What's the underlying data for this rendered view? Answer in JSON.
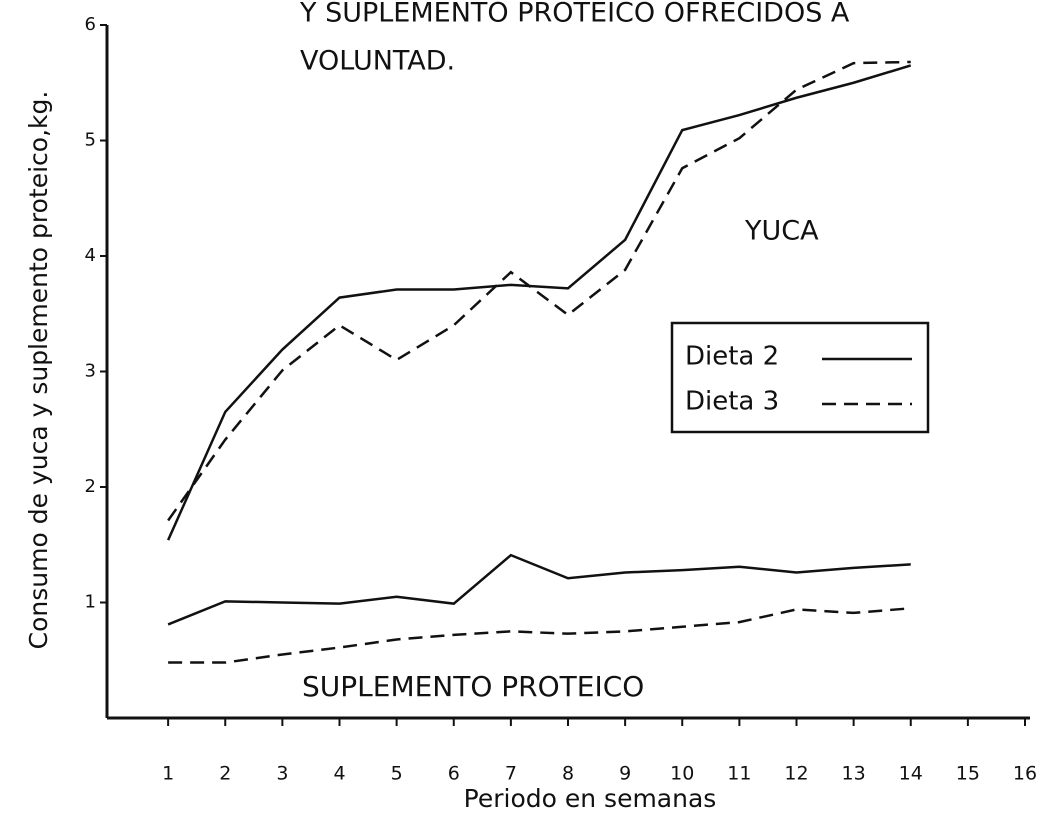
{
  "chart_data": {
    "type": "line",
    "title_lines": [
      "Y SUPLEMENTO PROTEICO OFRECIDOS  A",
      "VOLUNTAD."
    ],
    "y_label": "Consumo de yuca y suplemento proteico,kg.",
    "x_label": "Periodo en semanas",
    "annotations": [
      "YUCA",
      "SUPLEMENTO PROTEICO"
    ],
    "x": [
      1,
      2,
      3,
      4,
      5,
      6,
      7,
      8,
      9,
      10,
      11,
      12,
      13,
      14
    ],
    "series": [
      {
        "name": "Dieta 2",
        "color": "#111111",
        "dash": "solid",
        "yuca": [
          1.54,
          2.65,
          3.19,
          3.64,
          3.71,
          3.71,
          3.75,
          3.72,
          4.14,
          5.09,
          5.22,
          5.37,
          5.5,
          5.65
        ],
        "suplemento": [
          0.81,
          1.01,
          1.0,
          0.99,
          1.05,
          0.99,
          1.41,
          1.21,
          1.26,
          1.28,
          1.31,
          1.26,
          1.3,
          1.33
        ]
      },
      {
        "name": "Dieta 3",
        "color": "#111111",
        "dash": "dashed",
        "yuca": [
          1.71,
          2.41,
          3.01,
          3.4,
          3.1,
          3.4,
          3.86,
          3.49,
          3.88,
          4.76,
          5.02,
          5.44,
          5.67,
          5.68
        ],
        "suplemento": [
          0.48,
          0.48,
          0.55,
          0.61,
          0.68,
          0.72,
          0.75,
          0.73,
          0.75,
          0.79,
          0.83,
          0.94,
          0.91,
          0.95
        ]
      }
    ],
    "xlim": [
      0,
      16
    ],
    "xticks": [
      1,
      2,
      3,
      4,
      5,
      6,
      7,
      8,
      9,
      10,
      11,
      12,
      13,
      14,
      15,
      16
    ],
    "ylim": [
      0,
      6
    ],
    "yticks": [
      1,
      2,
      3,
      4,
      5,
      6
    ]
  }
}
